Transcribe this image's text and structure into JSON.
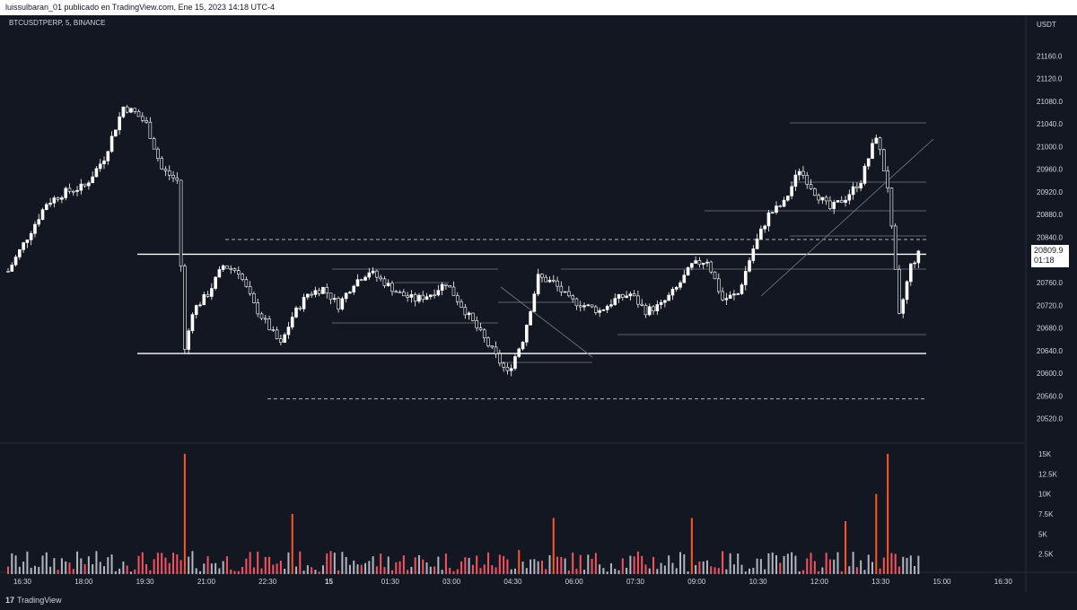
{
  "header": {
    "caption": "luissulbaran_01 publicado en TradingView.com, Ene 15, 2023 14:18 UTC-4"
  },
  "symbol": {
    "label": "BTCUSDTPERP, 5, BINANCE"
  },
  "axis": {
    "currency": "USDT"
  },
  "last_price": {
    "value": "20809.9",
    "countdown": "01:18"
  },
  "brand": {
    "logo": "17",
    "name": "TradingView"
  },
  "colors": {
    "background": "#131722",
    "candle": "#ffffff",
    "volume_up": "#b2b5be",
    "volume_down": "#f7525f",
    "volume_spike": "#ff5722",
    "grid": "#2a2e39",
    "text": "#d1d4dc"
  },
  "chart_data": [
    {
      "type": "candlestick",
      "interval": "5m",
      "ylim": [
        20480,
        21200
      ],
      "y_ticks": [
        20520,
        20560,
        20600,
        20640,
        20680,
        20720,
        20760,
        20800,
        20840,
        20880,
        20920,
        20960,
        21000,
        21040,
        21080,
        21120,
        21160
      ],
      "x_ticks": [
        "16:30",
        "18:00",
        "19:30",
        "21:00",
        "22:30",
        "15",
        "01:30",
        "03:00",
        "04:30",
        "06:00",
        "07:30",
        "09:00",
        "10:30",
        "12:00",
        "13:30",
        "15:00",
        "16:30"
      ],
      "price_path": [
        [
          0,
          20780
        ],
        [
          5,
          20840
        ],
        [
          10,
          20900
        ],
        [
          15,
          20920
        ],
        [
          20,
          20930
        ],
        [
          25,
          20980
        ],
        [
          30,
          21070
        ],
        [
          33,
          21060
        ],
        [
          36,
          21040
        ],
        [
          40,
          20960
        ],
        [
          44,
          20940
        ],
        [
          46,
          20640
        ],
        [
          48,
          20710
        ],
        [
          52,
          20740
        ],
        [
          56,
          20790
        ],
        [
          60,
          20780
        ],
        [
          64,
          20720
        ],
        [
          68,
          20680
        ],
        [
          71,
          20650
        ],
        [
          74,
          20700
        ],
        [
          78,
          20740
        ],
        [
          82,
          20750
        ],
        [
          86,
          20720
        ],
        [
          90,
          20760
        ],
        [
          94,
          20780
        ],
        [
          98,
          20760
        ],
        [
          102,
          20740
        ],
        [
          106,
          20730
        ],
        [
          110,
          20740
        ],
        [
          114,
          20760
        ],
        [
          118,
          20720
        ],
        [
          122,
          20680
        ],
        [
          126,
          20640
        ],
        [
          130,
          20600
        ],
        [
          134,
          20660
        ],
        [
          138,
          20770
        ],
        [
          142,
          20760
        ],
        [
          146,
          20730
        ],
        [
          150,
          20720
        ],
        [
          154,
          20710
        ],
        [
          158,
          20730
        ],
        [
          162,
          20740
        ],
        [
          166,
          20710
        ],
        [
          170,
          20720
        ],
        [
          174,
          20750
        ],
        [
          178,
          20790
        ],
        [
          182,
          20800
        ],
        [
          186,
          20730
        ],
        [
          190,
          20740
        ],
        [
          194,
          20820
        ],
        [
          198,
          20880
        ],
        [
          202,
          20900
        ],
        [
          206,
          20960
        ],
        [
          210,
          20920
        ],
        [
          214,
          20890
        ],
        [
          218,
          20910
        ],
        [
          222,
          20940
        ],
        [
          226,
          21020
        ],
        [
          229,
          20930
        ],
        [
          232,
          20700
        ],
        [
          235,
          20790
        ],
        [
          237,
          20810
        ]
      ],
      "levels": [
        20810,
        20635
      ],
      "dashed_levels": [
        20836,
        20555
      ],
      "last": 20809.9
    },
    {
      "type": "bar",
      "series": "volume",
      "ylim": [
        0,
        16000
      ],
      "y_ticks": [
        "2.5K",
        "5K",
        "7.5K",
        "10K",
        "12.5K",
        "15K"
      ],
      "spikes": [
        {
          "bar": 46,
          "value": 15000
        },
        {
          "bar": 74,
          "value": 7500
        },
        {
          "bar": 133,
          "value": 3000
        },
        {
          "bar": 142,
          "value": 7000
        },
        {
          "bar": 178,
          "value": 7000
        },
        {
          "bar": 218,
          "value": 6600
        },
        {
          "bar": 229,
          "value": 15000
        },
        {
          "bar": 226,
          "value": 10000
        }
      ]
    }
  ]
}
